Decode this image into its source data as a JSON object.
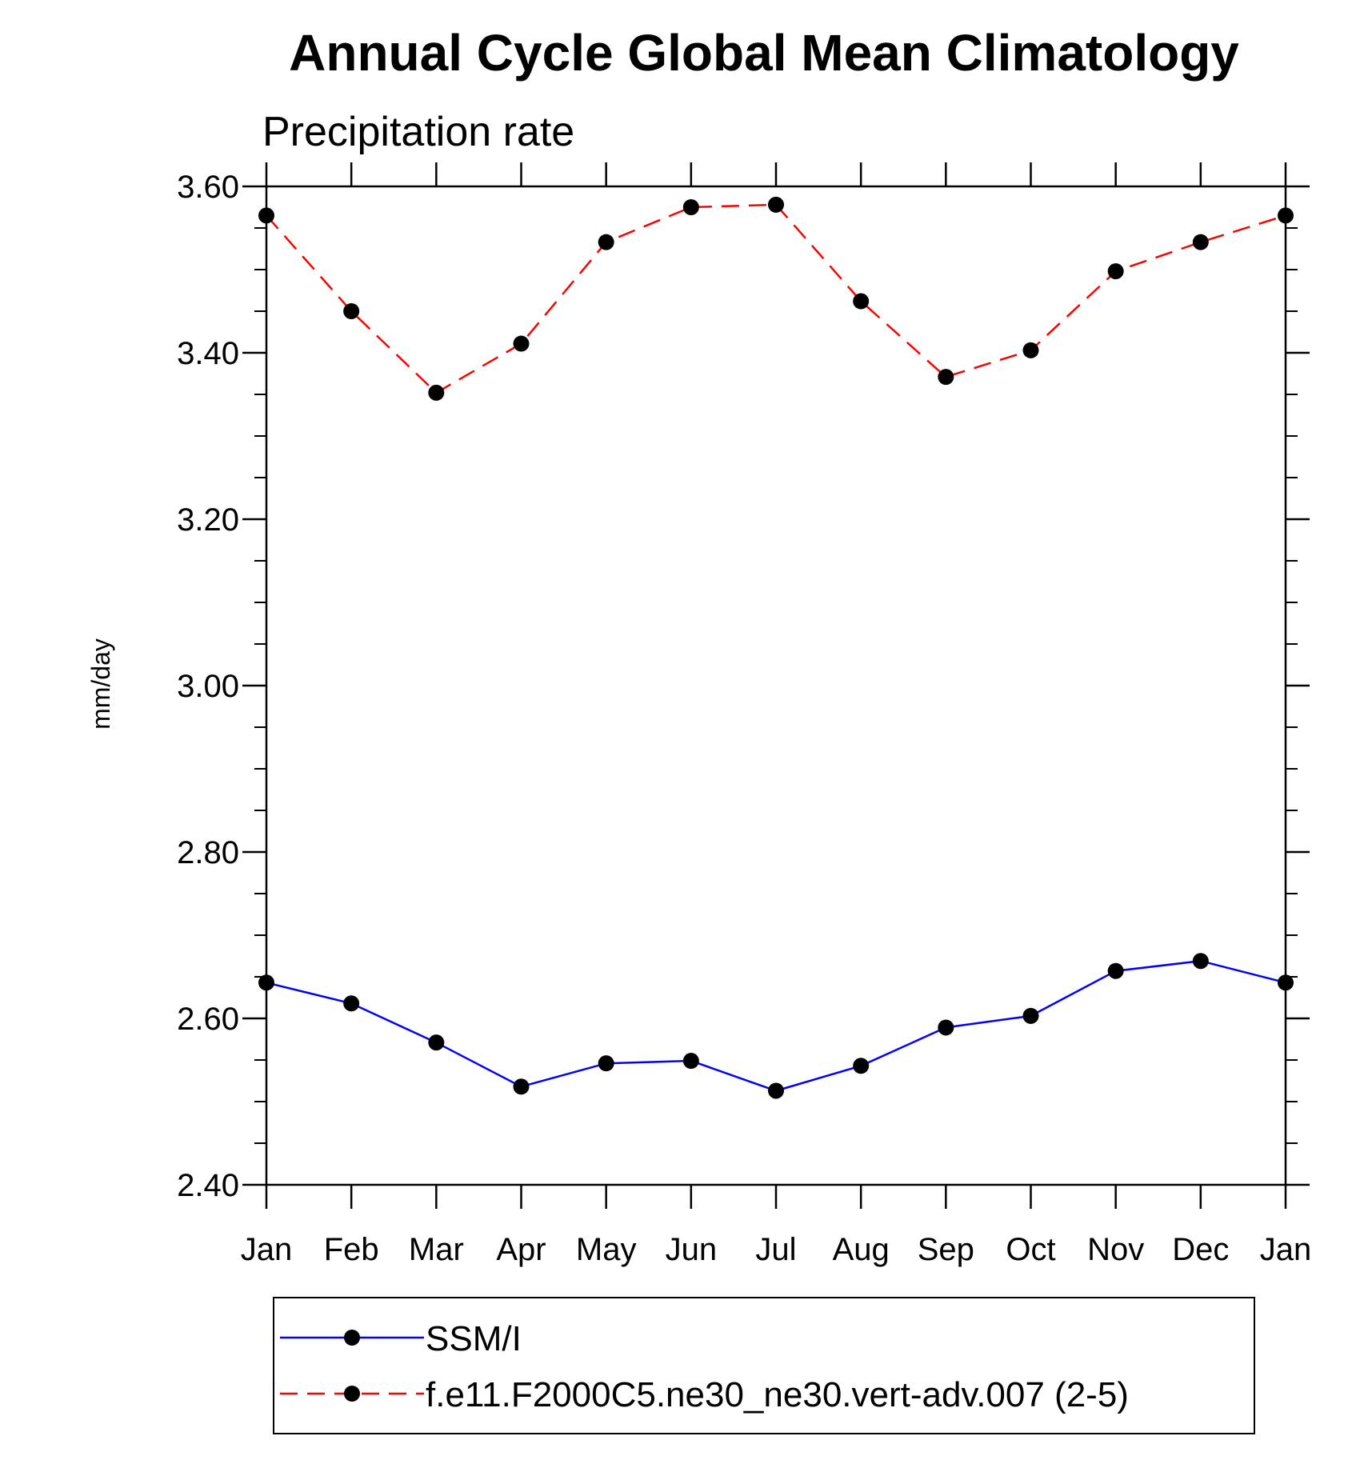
{
  "chart_data": {
    "type": "line",
    "title": "Annual Cycle Global Mean Climatology",
    "subtitle": "Precipitation rate",
    "ylabel": "mm/day",
    "xlabel": "",
    "categories": [
      "Jan",
      "Feb",
      "Mar",
      "Apr",
      "May",
      "Jun",
      "Jul",
      "Aug",
      "Sep",
      "Oct",
      "Nov",
      "Dec",
      "Jan"
    ],
    "ylim": [
      2.4,
      3.6
    ],
    "yticks": [
      "2.40",
      "2.60",
      "2.80",
      "3.00",
      "3.20",
      "3.40",
      "3.60"
    ],
    "series": [
      {
        "name": "SSM/I",
        "color": "#0000ff",
        "dash": "solid",
        "values": [
          2.643,
          2.618,
          2.571,
          2.518,
          2.546,
          2.549,
          2.513,
          2.543,
          2.589,
          2.603,
          2.657,
          2.669,
          2.643
        ]
      },
      {
        "name": "f.e11.F2000C5.ne30_ne30.vert-adv.007 (2-5)",
        "color": "#ff0000",
        "dash": "dashed",
        "values": [
          3.565,
          3.45,
          3.352,
          3.411,
          3.533,
          3.575,
          3.578,
          3.462,
          3.371,
          3.403,
          3.498,
          3.533,
          3.565
        ]
      }
    ],
    "legend_position": "bottom"
  }
}
